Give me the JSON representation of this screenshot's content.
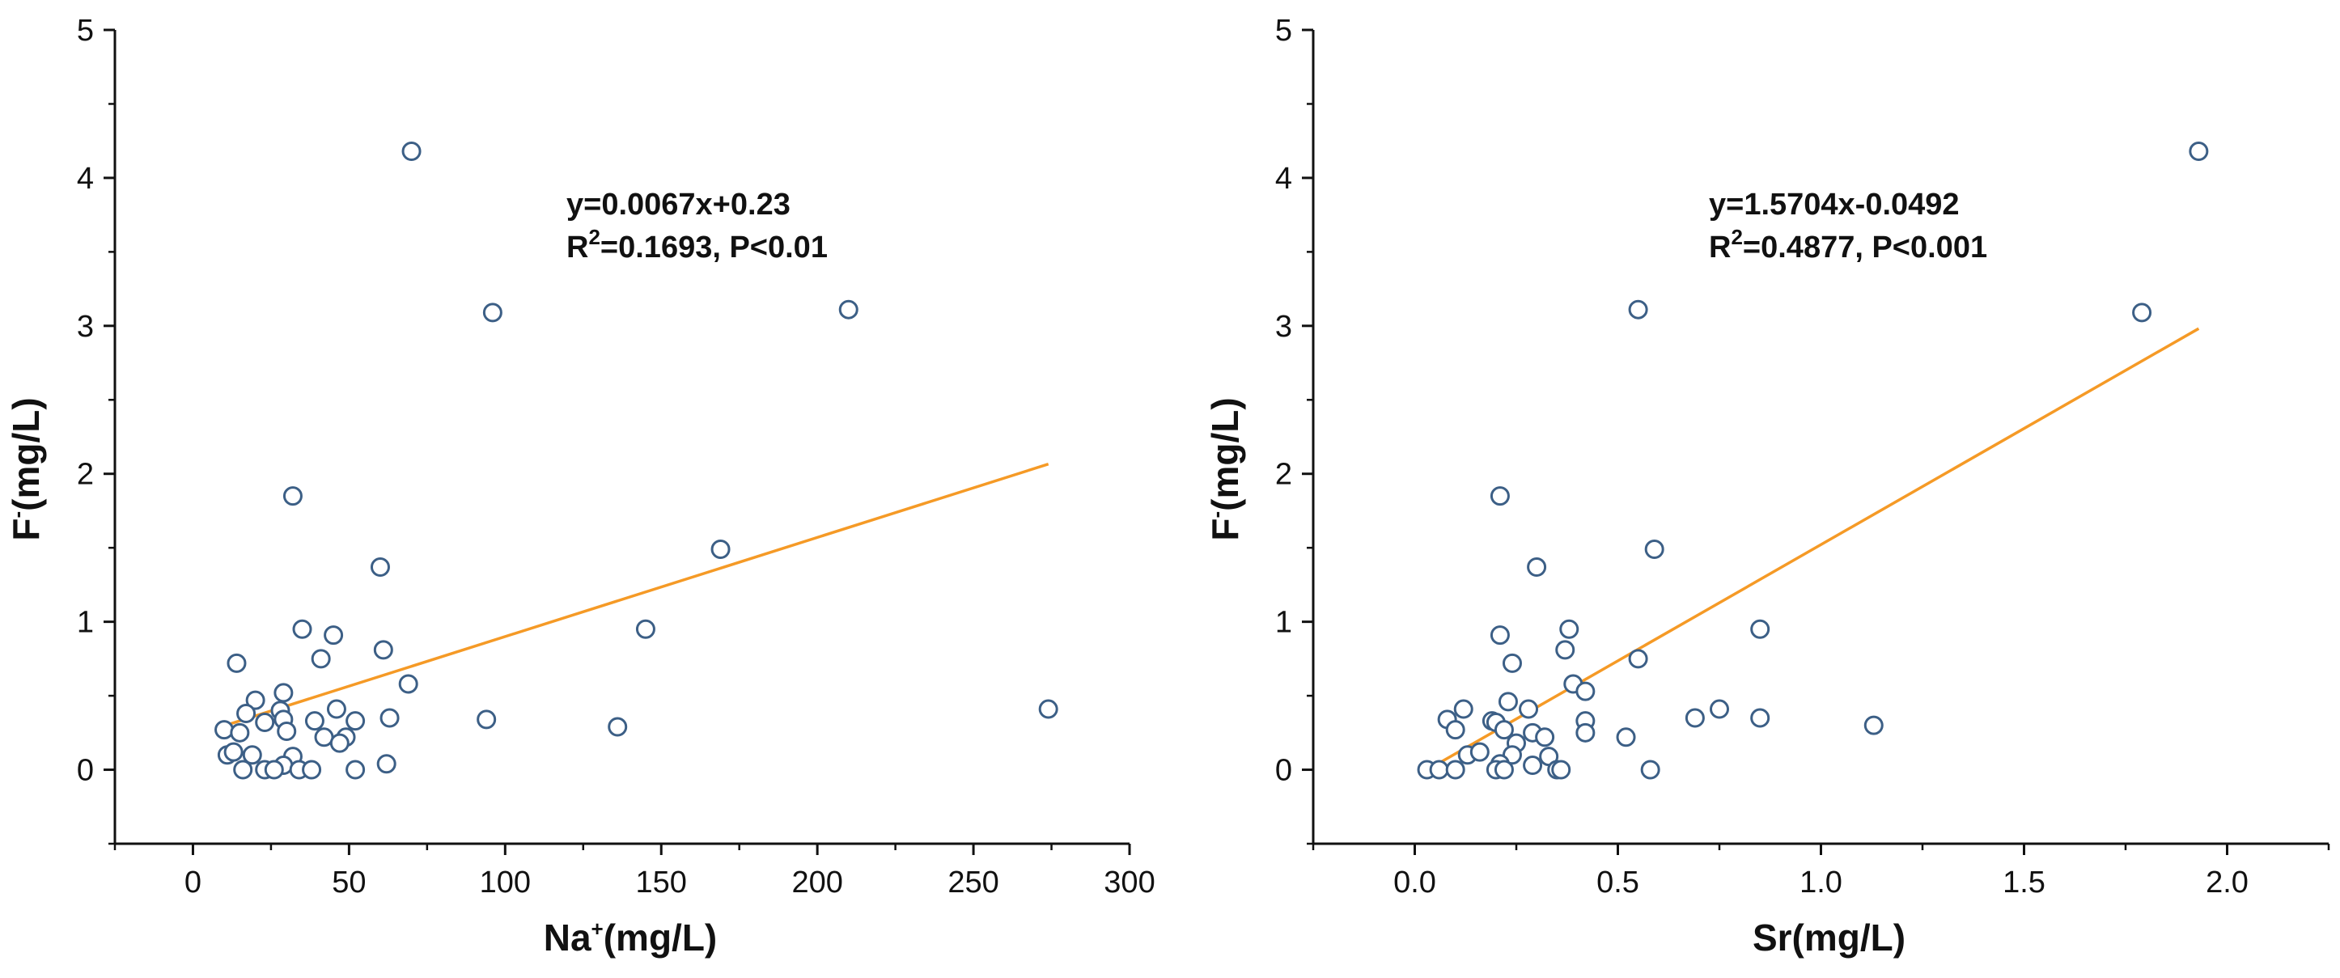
{
  "colors": {
    "axis": "#111111",
    "marker_stroke": "#3c5f86",
    "marker_fill": "#ffffff",
    "fit_line": "#f59a26"
  },
  "chart_data": [
    {
      "type": "scatter",
      "name": "F vs Na",
      "xlabel": "Na",
      "xlabel_sup": "+",
      "xlabel_unit": "(mg/L)",
      "ylabel": "F",
      "ylabel_sup": "-",
      "ylabel_unit": "(mg/L)",
      "xlim": [
        -25,
        300
      ],
      "ylim": [
        -0.5,
        5
      ],
      "xticks": [
        0,
        50,
        100,
        150,
        200,
        250,
        300
      ],
      "xtick_labels": [
        "0",
        "50",
        "100",
        "150",
        "200",
        "250",
        "300"
      ],
      "yticks": [
        0,
        1,
        2,
        3,
        4,
        5
      ],
      "ytick_labels": [
        "0",
        "1",
        "2",
        "3",
        "4",
        "5"
      ],
      "fit": {
        "slope": 0.0067,
        "intercept": 0.23,
        "x_range": [
          10,
          274
        ]
      },
      "equation": "y=0.0067x+0.23",
      "r2_prefix": "R",
      "r2_sup": "2",
      "r2_text": "=0.1693, P<0.01",
      "points": [
        [
          70,
          4.18
        ],
        [
          96,
          3.09
        ],
        [
          210,
          3.11
        ],
        [
          32,
          1.85
        ],
        [
          60,
          1.37
        ],
        [
          169,
          1.49
        ],
        [
          35,
          0.95
        ],
        [
          45,
          0.91
        ],
        [
          145,
          0.95
        ],
        [
          14,
          0.72
        ],
        [
          41,
          0.75
        ],
        [
          61,
          0.81
        ],
        [
          69,
          0.58
        ],
        [
          29,
          0.52
        ],
        [
          20,
          0.47
        ],
        [
          46,
          0.41
        ],
        [
          28,
          0.4
        ],
        [
          17,
          0.38
        ],
        [
          39,
          0.33
        ],
        [
          52,
          0.33
        ],
        [
          23,
          0.32
        ],
        [
          29,
          0.34
        ],
        [
          63,
          0.35
        ],
        [
          94,
          0.34
        ],
        [
          136,
          0.29
        ],
        [
          274,
          0.41
        ],
        [
          10,
          0.27
        ],
        [
          15,
          0.25
        ],
        [
          30,
          0.26
        ],
        [
          42,
          0.22
        ],
        [
          49,
          0.22
        ],
        [
          47,
          0.18
        ],
        [
          11,
          0.1
        ],
        [
          13,
          0.12
        ],
        [
          19,
          0.1
        ],
        [
          32,
          0.09
        ],
        [
          29,
          0.03
        ],
        [
          62,
          0.04
        ],
        [
          16,
          0.0
        ],
        [
          23,
          0.0
        ],
        [
          26,
          0.0
        ],
        [
          34,
          0.0
        ],
        [
          38,
          0.0
        ],
        [
          52,
          0.0
        ]
      ]
    },
    {
      "type": "scatter",
      "name": "F vs Sr",
      "xlabel": "Sr",
      "xlabel_sup": "",
      "xlabel_unit": "(mg/L)",
      "ylabel": "F",
      "ylabel_sup": "-",
      "ylabel_unit": "(mg/L)",
      "xlim": [
        -0.25,
        2.25
      ],
      "ylim": [
        -0.5,
        5
      ],
      "xticks": [
        0.0,
        0.5,
        1.0,
        1.5,
        2.0
      ],
      "xtick_labels": [
        "0.0",
        "0.5",
        "1.0",
        "1.5",
        "2.0"
      ],
      "yticks": [
        0,
        1,
        2,
        3,
        4,
        5
      ],
      "ytick_labels": [
        "0",
        "1",
        "2",
        "3",
        "4",
        "5"
      ],
      "fit": {
        "slope": 1.5704,
        "intercept": -0.0492,
        "x_range": [
          0.03,
          1.93
        ]
      },
      "equation": "y=1.5704x-0.0492",
      "r2_prefix": "R",
      "r2_sup": "2",
      "r2_text": "=0.4877, P<0.001",
      "points": [
        [
          1.93,
          4.18
        ],
        [
          0.55,
          3.11
        ],
        [
          1.79,
          3.09
        ],
        [
          0.21,
          1.85
        ],
        [
          0.3,
          1.37
        ],
        [
          0.59,
          1.49
        ],
        [
          0.38,
          0.95
        ],
        [
          0.85,
          0.95
        ],
        [
          0.21,
          0.91
        ],
        [
          0.37,
          0.81
        ],
        [
          0.24,
          0.72
        ],
        [
          0.55,
          0.75
        ],
        [
          0.39,
          0.58
        ],
        [
          0.42,
          0.53
        ],
        [
          0.23,
          0.46
        ],
        [
          0.12,
          0.41
        ],
        [
          0.28,
          0.41
        ],
        [
          0.75,
          0.41
        ],
        [
          0.08,
          0.34
        ],
        [
          0.19,
          0.33
        ],
        [
          0.2,
          0.32
        ],
        [
          0.42,
          0.33
        ],
        [
          0.69,
          0.35
        ],
        [
          0.85,
          0.35
        ],
        [
          1.13,
          0.3
        ],
        [
          0.1,
          0.27
        ],
        [
          0.22,
          0.27
        ],
        [
          0.29,
          0.25
        ],
        [
          0.32,
          0.22
        ],
        [
          0.42,
          0.25
        ],
        [
          0.52,
          0.22
        ],
        [
          0.25,
          0.18
        ],
        [
          0.13,
          0.1
        ],
        [
          0.16,
          0.12
        ],
        [
          0.24,
          0.1
        ],
        [
          0.33,
          0.09
        ],
        [
          0.29,
          0.03
        ],
        [
          0.21,
          0.04
        ],
        [
          0.03,
          0.0
        ],
        [
          0.06,
          0.0
        ],
        [
          0.1,
          0.0
        ],
        [
          0.2,
          0.0
        ],
        [
          0.22,
          0.0
        ],
        [
          0.35,
          0.0
        ],
        [
          0.36,
          0.0
        ],
        [
          0.58,
          0.0
        ]
      ]
    }
  ]
}
